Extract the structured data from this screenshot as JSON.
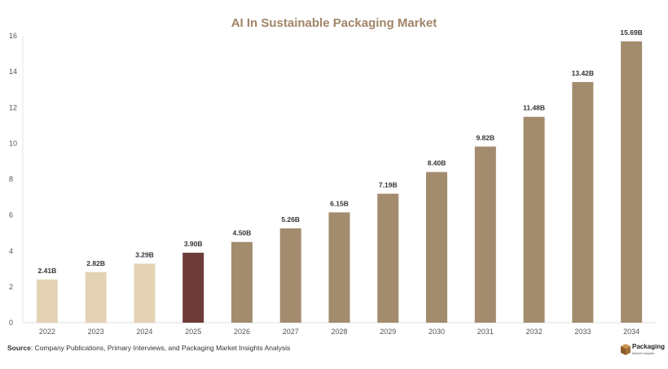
{
  "chart_data": {
    "type": "bar",
    "title": "AI In Sustainable Packaging Market",
    "xlabel": "",
    "ylabel": "",
    "categories": [
      "2022",
      "2023",
      "2024",
      "2025",
      "2026",
      "2027",
      "2028",
      "2029",
      "2030",
      "2031",
      "2032",
      "2033",
      "2034"
    ],
    "values": [
      2.41,
      2.82,
      3.29,
      3.9,
      4.5,
      5.26,
      6.15,
      7.19,
      8.4,
      9.82,
      11.48,
      13.42,
      15.69
    ],
    "data_labels": [
      "2.41B",
      "2.82B",
      "3.29B",
      "3.90B",
      "4.50B",
      "5.26B",
      "6.15B",
      "7.19B",
      "8.40B",
      "9.82B",
      "11.48B",
      "13.42B",
      "15.69B"
    ],
    "ylim": [
      0,
      16
    ],
    "yticks": [
      0,
      2,
      4,
      6,
      8,
      10,
      12,
      14,
      16
    ],
    "grid": false,
    "legend": "none",
    "colors": {
      "historical": "#e3d2b4",
      "base_year": "#6e3b3b",
      "forecast": "#a38b6d",
      "title": "#a08568"
    },
    "bar_groups": [
      "historical",
      "historical",
      "historical",
      "base_year",
      "forecast",
      "forecast",
      "forecast",
      "forecast",
      "forecast",
      "forecast",
      "forecast",
      "forecast",
      "forecast"
    ]
  },
  "footer": {
    "source_label": "Source",
    "source_text": ": Company Publications, Primary Interviews, and Packaging Market Insights Analysis"
  },
  "logo": {
    "name": "Packaging",
    "subtitle": "Market Insights",
    "icon": "box-icon",
    "color": "#a0703a"
  }
}
